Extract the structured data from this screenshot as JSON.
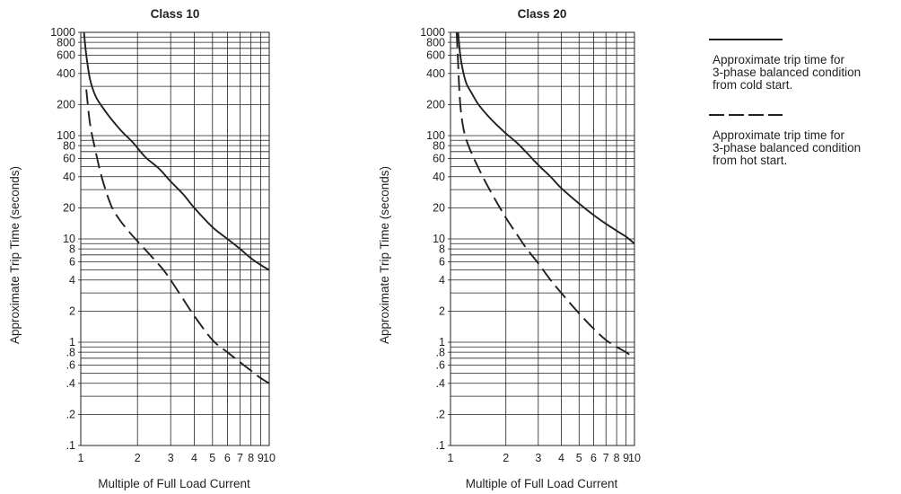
{
  "chart_data": [
    {
      "type": "line",
      "title": "Class 10",
      "xlabel": "Multiple of Full Load Current",
      "ylabel": "Approximate Trip Time (seconds)",
      "xscale": "log",
      "yscale": "log",
      "xlim": [
        1,
        10
      ],
      "ylim": [
        0.1,
        1000
      ],
      "grid": true,
      "xtick_labels": [
        "1",
        "2",
        "3",
        "4",
        "5",
        "6",
        "7",
        "8",
        "9",
        "10"
      ],
      "ytick_labels": [
        ".1",
        ".2",
        ".4",
        ".6",
        ".8",
        "1",
        "2",
        "4",
        "6",
        "8",
        "10",
        "20",
        "40",
        "60",
        "80",
        "100",
        "200",
        "400",
        "600",
        "800",
        "1000"
      ],
      "series": [
        {
          "style": "solid",
          "x": [
            1.04,
            1.07,
            1.12,
            1.2,
            1.3,
            1.45,
            1.65,
            1.9,
            2.2,
            2.6,
            3.0,
            3.5,
            4.0,
            5.0,
            6.0,
            7.0,
            8.0,
            9.0,
            10.0
          ],
          "y": [
            1000,
            600,
            350,
            240,
            190,
            145,
            110,
            85,
            62,
            48,
            36,
            27,
            20,
            13,
            10,
            8,
            6.5,
            5.6,
            5
          ]
        },
        {
          "style": "dashed",
          "x": [
            1.07,
            1.12,
            1.2,
            1.3,
            1.45,
            1.6,
            1.8,
            2.0,
            2.3,
            2.7,
            3.0,
            3.5,
            4.0,
            5.0,
            6.0,
            7.0,
            8.0,
            9.0,
            10.0
          ],
          "y": [
            280,
            130,
            70,
            38,
            21,
            15.5,
            11.8,
            9.5,
            7.2,
            5.2,
            4,
            2.6,
            1.8,
            1.05,
            0.8,
            0.64,
            0.53,
            0.45,
            0.4
          ]
        }
      ]
    },
    {
      "type": "line",
      "title": "Class 20",
      "xlabel": "Multiple of Full Load Current",
      "ylabel": "Approximate Trip Time (seconds)",
      "xscale": "log",
      "yscale": "log",
      "xlim": [
        1,
        10
      ],
      "ylim": [
        0.1,
        1000
      ],
      "grid": true,
      "xtick_labels": [
        "1",
        "2",
        "3",
        "4",
        "5",
        "6",
        "7",
        "8",
        "9",
        "10"
      ],
      "ytick_labels": [
        ".1",
        ".2",
        ".4",
        ".6",
        ".8",
        "1",
        "2",
        "4",
        "6",
        "8",
        "10",
        "20",
        "40",
        "60",
        "80",
        "100",
        "200",
        "400",
        "600",
        "800",
        "1000"
      ],
      "series": [
        {
          "style": "solid",
          "x": [
            1.1,
            1.13,
            1.17,
            1.22,
            1.3,
            1.42,
            1.6,
            1.8,
            2.0,
            2.3,
            2.6,
            3.0,
            3.5,
            4.0,
            5.0,
            6.0,
            7.0,
            8.0,
            9.0,
            10.0
          ],
          "y": [
            1000,
            600,
            420,
            320,
            260,
            200,
            155,
            125,
            105,
            85,
            68,
            52,
            40,
            31,
            22,
            17,
            14,
            12,
            10.5,
            9
          ]
        },
        {
          "style": "dashed",
          "x": [
            1.08,
            1.1,
            1.12,
            1.15,
            1.2,
            1.3,
            1.45,
            1.6,
            1.8,
            2.0,
            2.3,
            2.6,
            3.0,
            3.5,
            4.0,
            5.0,
            6.0,
            7.0,
            8.0,
            9.0,
            10.0
          ],
          "y": [
            1000,
            500,
            250,
            150,
            100,
            68,
            45,
            32,
            22,
            16,
            11,
            8,
            5.8,
            4,
            3,
            1.9,
            1.35,
            1.05,
            0.9,
            0.8,
            0.7
          ]
        }
      ]
    }
  ],
  "legend": {
    "cold_start": "Approximate trip time for\n3-phase balanced condition\nfrom cold start.",
    "hot_start": "Approximate trip time for\n3-phase balanced condition\nfrom hot start."
  }
}
